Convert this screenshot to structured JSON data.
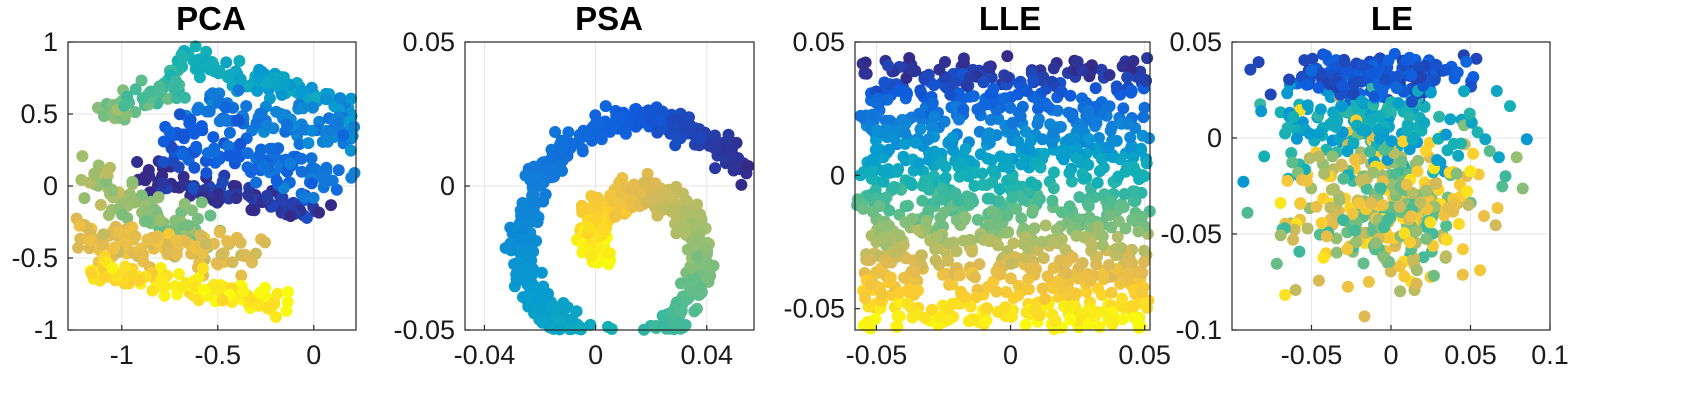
{
  "chart_data": [
    {
      "type": "scatter",
      "title": "PCA",
      "xlim": [
        -1.28,
        0.22
      ],
      "ylim": [
        -1,
        1
      ],
      "xticks": [
        -1,
        -0.5,
        0
      ],
      "xtick_labels": [
        "-1",
        "-0.5",
        "0"
      ],
      "yticks": [
        -1,
        -0.5,
        0,
        0.5,
        1
      ],
      "ytick_labels": [
        "-1",
        "-0.5",
        "0",
        "0.5",
        "1"
      ],
      "grid": true,
      "colormap": "parula",
      "shape": "swiss-roll-pca"
    },
    {
      "type": "scatter",
      "title": "PSA",
      "xlim": [
        -0.047,
        0.057
      ],
      "ylim": [
        -0.05,
        0.05
      ],
      "xticks": [
        -0.04,
        0,
        0.04
      ],
      "xtick_labels": [
        "-0.04",
        "0",
        "0.04"
      ],
      "yticks": [
        -0.05,
        0,
        0.05
      ],
      "ytick_labels": [
        "-0.05",
        "0",
        "0.05"
      ],
      "grid": true,
      "colormap": "parula",
      "shape": "spiral"
    },
    {
      "type": "scatter",
      "title": "LLE",
      "xlim": [
        -0.058,
        0.052
      ],
      "ylim": [
        -0.058,
        0.05
      ],
      "xticks": [
        -0.05,
        0,
        0.05
      ],
      "xtick_labels": [
        "-0.05",
        "0",
        "0.05"
      ],
      "yticks": [
        -0.05,
        0,
        0.05
      ],
      "ytick_labels": [
        "-0.05",
        "0",
        "0.05"
      ],
      "grid": true,
      "colormap": "parula",
      "shape": "unrolled-rectangle"
    },
    {
      "type": "scatter",
      "title": "LE",
      "xlim": [
        -0.1,
        0.1
      ],
      "ylim": [
        -0.1,
        0.05
      ],
      "xticks": [
        -0.05,
        0,
        0.05,
        0.1
      ],
      "xtick_labels": [
        "-0.05",
        "0",
        "0.05",
        "0.1"
      ],
      "yticks": [
        -0.1,
        -0.05,
        0,
        0.05
      ],
      "ytick_labels": [
        "-0.1",
        "-0.05",
        "0",
        "0.05"
      ],
      "grid": true,
      "colormap": "parula",
      "shape": "clustered-blob"
    }
  ]
}
